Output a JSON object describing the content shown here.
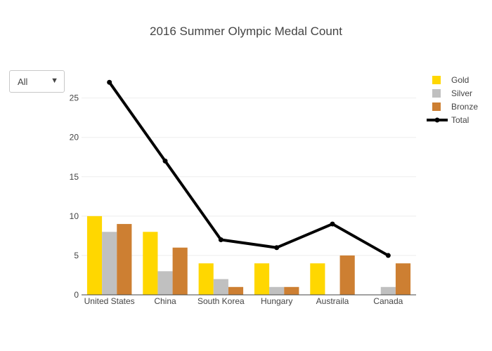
{
  "dropdown": {
    "selected": "All"
  },
  "chart_data": {
    "type": "bar",
    "title": "2016 Summer Olympic Medal Count",
    "xlabel": "",
    "ylabel": "",
    "categories": [
      "United States",
      "China",
      "South Korea",
      "Hungary",
      "Austraila",
      "Canada"
    ],
    "ylim": [
      0,
      28
    ],
    "yticks": [
      0,
      5,
      10,
      15,
      20,
      25
    ],
    "grid": true,
    "legend_position": "top-right",
    "series": [
      {
        "name": "Gold",
        "type": "bar",
        "color": "#FFD700",
        "values": [
          10,
          8,
          4,
          4,
          4,
          0
        ]
      },
      {
        "name": "Silver",
        "type": "bar",
        "color": "#C0C0C0",
        "values": [
          8,
          3,
          2,
          1,
          0,
          1
        ]
      },
      {
        "name": "Bronze",
        "type": "bar",
        "color": "#CD7F32",
        "values": [
          9,
          6,
          1,
          1,
          5,
          4
        ]
      },
      {
        "name": "Total",
        "type": "line",
        "color": "#000000",
        "values": [
          27,
          17,
          7,
          6,
          9,
          5
        ]
      }
    ]
  }
}
